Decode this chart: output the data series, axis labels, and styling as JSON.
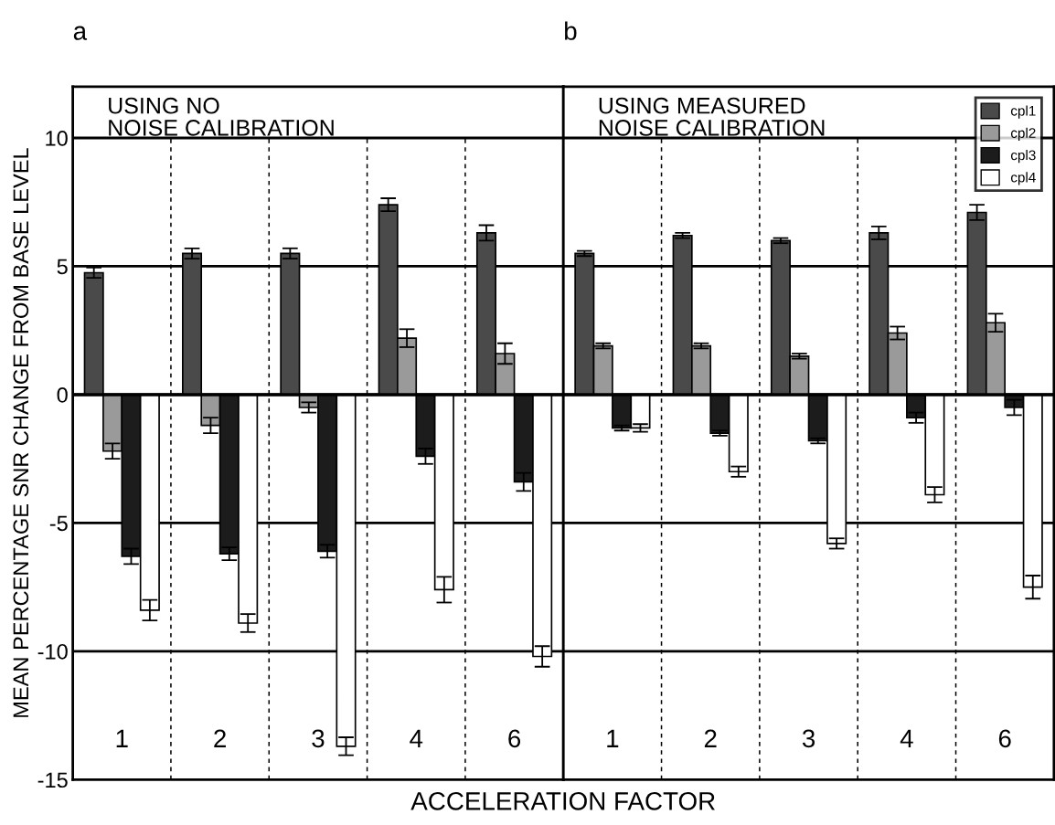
{
  "chart_data": [
    {
      "type": "bar",
      "title": "a",
      "ylabel": "MEAN PERCENTAGE SNR CHANGE FROM BASE LEVEL",
      "xlabel": "ACCELERATION FACTOR",
      "annotations": [
        "USING NO\nNOISE CALIBRATION"
      ],
      "categories": [
        "1",
        "2",
        "3",
        "4",
        "6"
      ],
      "series": [
        {
          "name": "cpl1",
          "color": "#4a4a4a",
          "values": [
            4.75,
            5.5,
            5.5,
            7.4,
            6.3
          ],
          "errors": [
            0.2,
            0.2,
            0.2,
            0.25,
            0.3
          ]
        },
        {
          "name": "cpl2",
          "color": "#9a9a9a",
          "values": [
            -2.2,
            -1.2,
            -0.5,
            2.2,
            1.6
          ],
          "errors": [
            0.3,
            0.3,
            0.2,
            0.35,
            0.4
          ]
        },
        {
          "name": "cpl3",
          "color": "#1c1c1c",
          "values": [
            -6.3,
            -6.2,
            -6.1,
            -2.4,
            -3.4
          ],
          "errors": [
            0.3,
            0.25,
            0.25,
            0.3,
            0.35
          ]
        },
        {
          "name": "cpl4",
          "color": "#ffffff",
          "values": [
            -8.4,
            -8.9,
            -13.7,
            -7.6,
            -10.2
          ],
          "errors": [
            0.4,
            0.35,
            0.35,
            0.5,
            0.4
          ]
        }
      ],
      "ylim": [
        -15,
        12
      ],
      "yticks": [
        -15,
        -10,
        -5,
        0,
        5,
        10
      ],
      "grid": "y",
      "legend": "top right"
    },
    {
      "type": "bar",
      "title": "b",
      "annotations": [
        "USING MEASURED\nNOISE CALIBRATION"
      ],
      "categories": [
        "1",
        "2",
        "3",
        "4",
        "6"
      ],
      "series": [
        {
          "color": "#4a4a4a",
          "values": [
            5.5,
            6.2,
            6.0,
            6.3,
            7.1
          ],
          "errors": [
            0.1,
            0.1,
            0.1,
            0.25,
            0.3
          ]
        },
        {
          "color": "#9a9a9a",
          "values": [
            1.9,
            1.9,
            1.5,
            2.4,
            2.8
          ],
          "errors": [
            0.1,
            0.1,
            0.1,
            0.25,
            0.35
          ]
        },
        {
          "color": "#1c1c1c",
          "values": [
            -1.3,
            -1.5,
            -1.8,
            -0.9,
            -0.5
          ],
          "errors": [
            0.1,
            0.1,
            0.1,
            0.2,
            0.3
          ]
        },
        {
          "color": "#ffffff",
          "values": [
            -1.3,
            -3.0,
            -5.8,
            -3.9,
            -7.5
          ],
          "errors": [
            0.15,
            0.2,
            0.2,
            0.3,
            0.45
          ]
        }
      ],
      "ylim": [
        -15,
        12
      ],
      "yticks": [
        -15,
        -10,
        -5,
        0,
        5,
        10
      ],
      "grid": "y",
      "legend": false,
      "tick_labels": "x"
    }
  ]
}
